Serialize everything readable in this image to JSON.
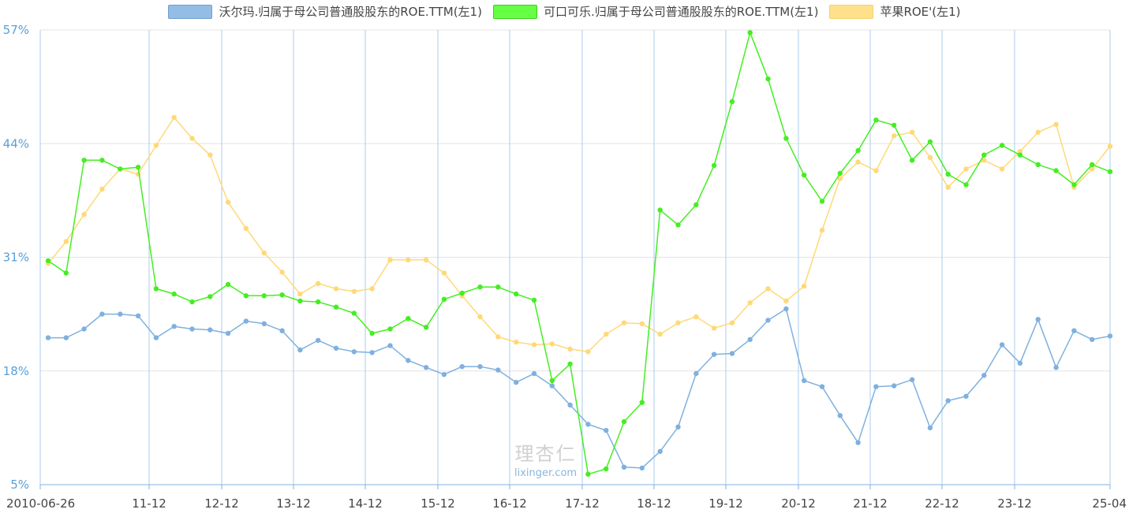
{
  "legend": [
    {
      "label": "沃尔玛.归属于母公司普通股股东的ROE.TTM(左1)",
      "color": "#94bde6",
      "border": "#6a9fd0"
    },
    {
      "label": "可口可乐.归属于母公司普通股股东的ROE.TTM(左1)",
      "color": "#66ff44",
      "border": "#3ccf1c"
    },
    {
      "label": "苹果ROE'(左1)",
      "color": "#ffe08c",
      "border": "#f5d070"
    }
  ],
  "watermark": {
    "cn": "理杏仁",
    "en": "lixinger.com"
  },
  "chart_data": {
    "type": "line",
    "x_tick_labels": [
      "2010-06-26",
      "11-12",
      "12-12",
      "13-12",
      "14-12",
      "15-12",
      "16-12",
      "17-12",
      "18-12",
      "19-12",
      "20-12",
      "21-12",
      "22-12",
      "23-12",
      "25-04"
    ],
    "y_tick_labels": [
      "5%",
      "18%",
      "31%",
      "44%",
      "57%"
    ],
    "ylim": [
      5,
      57
    ],
    "grid": true,
    "legend_position": "top-center",
    "series": [
      {
        "name": "沃尔玛.归属于母公司普通股股东的ROE.TTM(左1)",
        "color": "#7fb0df",
        "values": [
          21.8,
          21.8,
          22.8,
          24.5,
          24.5,
          24.3,
          21.8,
          23.1,
          22.8,
          22.7,
          22.3,
          23.7,
          23.4,
          22.6,
          20.4,
          21.5,
          20.6,
          20.2,
          20.1,
          20.9,
          19.2,
          18.4,
          17.6,
          18.5,
          18.5,
          18.1,
          16.7,
          17.7,
          16.3,
          14.1,
          11.9,
          11.2,
          7.0,
          6.9,
          8.8,
          11.6,
          17.7,
          19.9,
          20.0,
          21.6,
          23.8,
          25.1,
          16.9,
          16.2,
          12.9,
          9.8,
          16.2,
          16.3,
          17.0,
          11.5,
          14.6,
          15.1,
          17.5,
          21.0,
          18.9,
          23.9,
          18.4,
          22.6,
          21.6,
          22.0
        ]
      },
      {
        "name": "可口可乐.归属于母公司普通股股东的ROE.TTM(左1)",
        "color": "#44ee22",
        "values": [
          30.6,
          29.2,
          42.1,
          42.1,
          41.1,
          41.3,
          27.4,
          26.8,
          25.9,
          26.5,
          27.9,
          26.6,
          26.6,
          26.7,
          26.0,
          25.9,
          25.3,
          24.6,
          22.3,
          22.8,
          24.0,
          23.0,
          26.2,
          26.9,
          27.6,
          27.6,
          26.8,
          26.1,
          16.9,
          18.8,
          6.2,
          6.8,
          12.2,
          14.4,
          36.4,
          34.7,
          37.0,
          41.5,
          48.8,
          56.7,
          51.4,
          44.6,
          40.4,
          37.4,
          40.6,
          43.2,
          46.7,
          46.1,
          42.1,
          44.2,
          40.5,
          39.3,
          42.7,
          43.8,
          42.7,
          41.6,
          40.9,
          39.3,
          41.6,
          40.8
        ]
      },
      {
        "name": "苹果ROE'(左1)",
        "color": "#ffd978",
        "values": [
          30.3,
          32.8,
          35.9,
          38.8,
          41.1,
          40.5,
          43.8,
          47.0,
          44.6,
          42.7,
          37.3,
          34.3,
          31.5,
          29.3,
          26.8,
          28.0,
          27.4,
          27.1,
          27.4,
          30.7,
          30.7,
          30.7,
          29.2,
          26.6,
          24.2,
          21.9,
          21.3,
          21.0,
          21.1,
          20.5,
          20.2,
          22.2,
          23.5,
          23.4,
          22.2,
          23.5,
          24.2,
          22.9,
          23.5,
          25.8,
          27.4,
          26.0,
          27.7,
          34.1,
          40.0,
          41.9,
          40.9,
          44.9,
          45.3,
          42.4,
          39.0,
          41.1,
          42.1,
          41.1,
          43.1,
          45.3,
          46.2,
          39.0,
          41.1,
          43.7
        ]
      }
    ]
  }
}
